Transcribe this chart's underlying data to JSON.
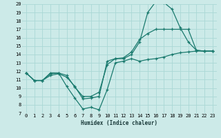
{
  "xlabel": "Humidex (Indice chaleur)",
  "xlim": [
    -0.5,
    23.5
  ],
  "ylim": [
    7,
    20
  ],
  "xticks": [
    0,
    1,
    2,
    3,
    4,
    5,
    6,
    7,
    8,
    9,
    10,
    11,
    12,
    13,
    14,
    15,
    16,
    17,
    18,
    19,
    20,
    21,
    22,
    23
  ],
  "yticks": [
    7,
    8,
    9,
    10,
    11,
    12,
    13,
    14,
    15,
    16,
    17,
    18,
    19,
    20
  ],
  "bg_color": "#cceae8",
  "grid_color": "#aad8d5",
  "line_color": "#1a7a6e",
  "line1_x": [
    0,
    1,
    2,
    3,
    4,
    5,
    6,
    7,
    8,
    9,
    10,
    11,
    12,
    13,
    14,
    15,
    16,
    17,
    18,
    19,
    20,
    21,
    22,
    23
  ],
  "line1_y": [
    11.8,
    10.9,
    10.9,
    11.8,
    11.8,
    10.2,
    8.8,
    7.5,
    7.7,
    7.4,
    9.8,
    13.0,
    13.2,
    13.5,
    13.2,
    13.4,
    13.5,
    13.7,
    14.0,
    14.2,
    14.3,
    14.4,
    14.4,
    14.4
  ],
  "line2_x": [
    0,
    1,
    2,
    3,
    4,
    5,
    6,
    7,
    8,
    9,
    10,
    11,
    12,
    13,
    14,
    15,
    16,
    17,
    18,
    19,
    20,
    21,
    22,
    23
  ],
  "line2_y": [
    11.8,
    10.9,
    10.9,
    11.7,
    11.8,
    11.5,
    10.1,
    9.0,
    9.0,
    9.5,
    12.8,
    13.5,
    13.5,
    14.0,
    15.5,
    19.0,
    20.3,
    20.2,
    19.4,
    17.2,
    15.5,
    14.5,
    14.4,
    14.4
  ],
  "line3_x": [
    0,
    1,
    2,
    3,
    4,
    5,
    6,
    7,
    8,
    9,
    10,
    11,
    12,
    13,
    14,
    15,
    16,
    17,
    18,
    19,
    20,
    21,
    22,
    23
  ],
  "line3_y": [
    11.8,
    10.9,
    10.9,
    11.5,
    11.7,
    11.3,
    10.2,
    8.7,
    8.8,
    9.0,
    13.2,
    13.5,
    13.6,
    14.3,
    15.8,
    16.5,
    17.0,
    17.0,
    17.0,
    17.0,
    17.0,
    14.5,
    14.4,
    14.4
  ]
}
